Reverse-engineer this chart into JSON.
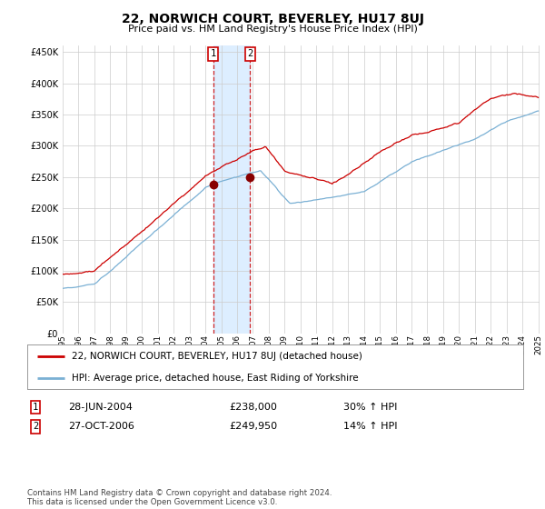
{
  "title": "22, NORWICH COURT, BEVERLEY, HU17 8UJ",
  "subtitle": "Price paid vs. HM Land Registry's House Price Index (HPI)",
  "sale1_date_label": "28-JUN-2004",
  "sale1_price": 238000,
  "sale1_hpi_diff": "30% ↑ HPI",
  "sale1_year": 2004.49,
  "sale2_date_label": "27-OCT-2006",
  "sale2_price": 249950,
  "sale2_hpi_diff": "14% ↑ HPI",
  "sale2_year": 2006.82,
  "legend_line1": "22, NORWICH COURT, BEVERLEY, HU17 8UJ (detached house)",
  "legend_line2": "HPI: Average price, detached house, East Riding of Yorkshire",
  "footer": "Contains HM Land Registry data © Crown copyright and database right 2024.\nThis data is licensed under the Open Government Licence v3.0.",
  "hpi_color": "#7ab0d4",
  "price_color": "#cc0000",
  "background_color": "#ffffff",
  "grid_color": "#cccccc",
  "highlight_color": "#ddeeff",
  "ylim": [
    0,
    460000
  ],
  "yticks": [
    0,
    50000,
    100000,
    150000,
    200000,
    250000,
    300000,
    350000,
    400000,
    450000
  ]
}
